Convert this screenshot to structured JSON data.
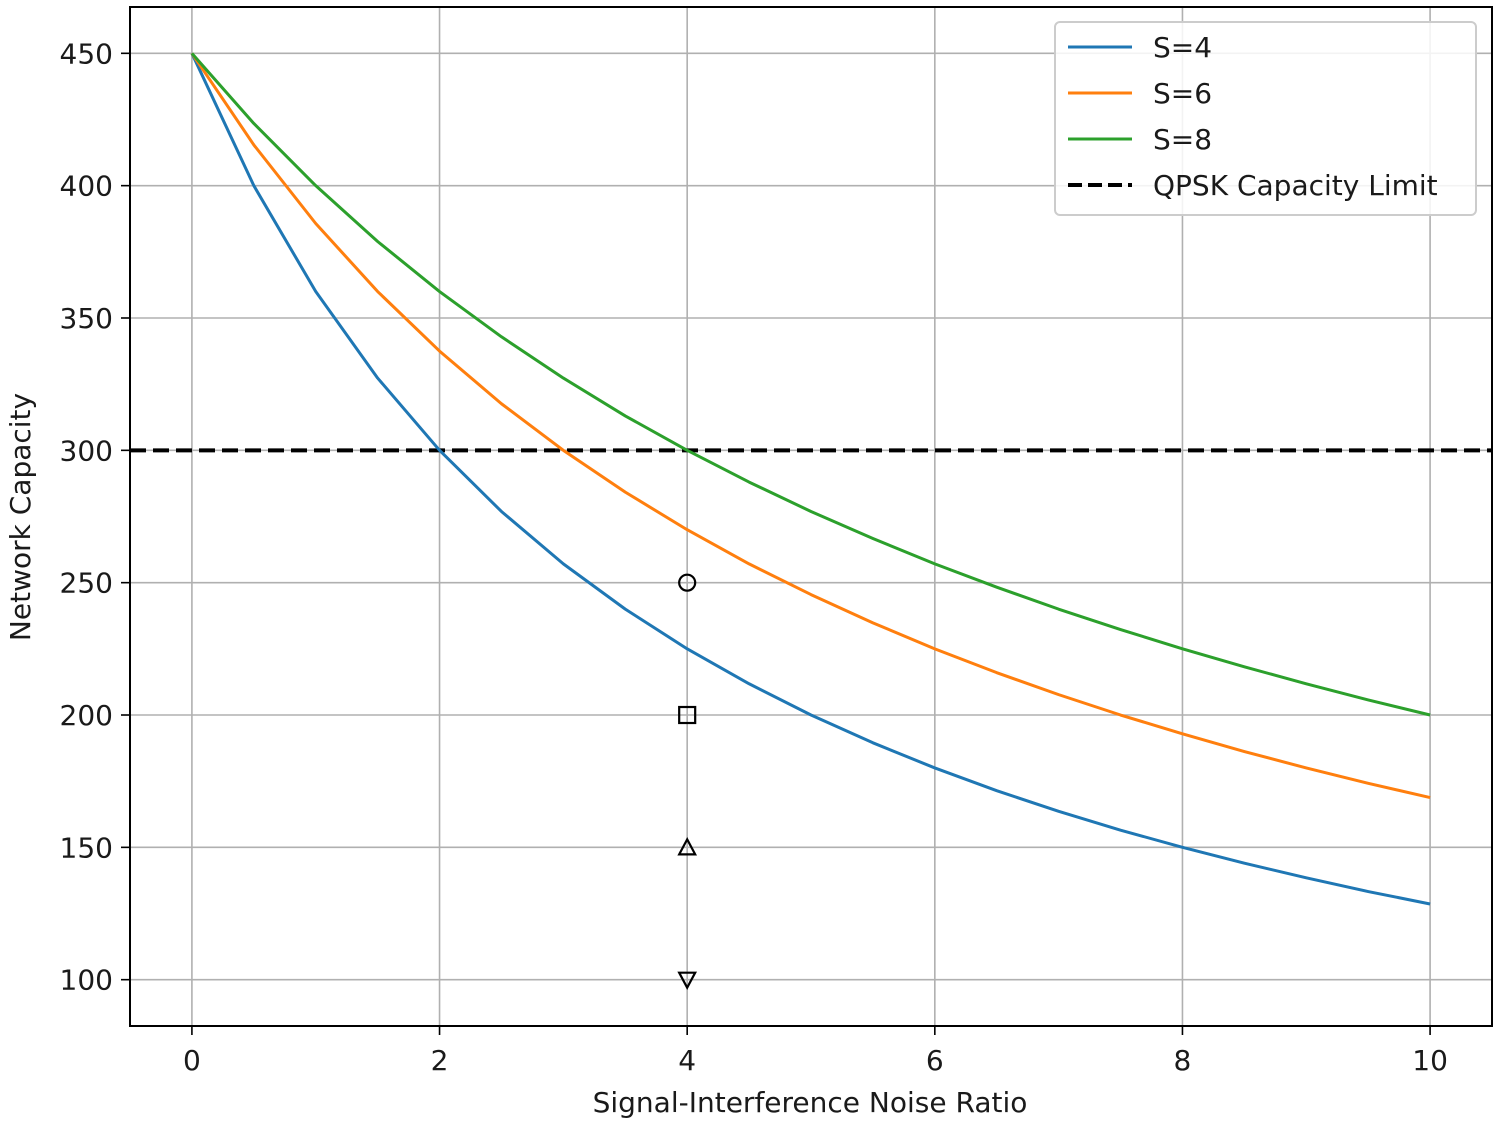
{
  "chart_data": {
    "type": "line",
    "title": "",
    "xlabel": "Signal-Interference Noise Ratio",
    "ylabel": "Network Capacity",
    "xlim": [
      -0.5,
      10.5
    ],
    "ylim": [
      82.5,
      467.5
    ],
    "xticks": [
      0,
      2,
      4,
      6,
      8,
      10
    ],
    "yticks": [
      100,
      150,
      200,
      250,
      300,
      350,
      400,
      450
    ],
    "xtick_labels": [
      "0",
      "2",
      "4",
      "6",
      "8",
      "10"
    ],
    "ytick_labels": [
      "100",
      "150",
      "200",
      "250",
      "300",
      "350",
      "400",
      "450"
    ],
    "grid": true,
    "legend_position": "top-right",
    "series": [
      {
        "name": "S=4",
        "color": "#1f77b4",
        "x": [
          0,
          0.5,
          1,
          1.5,
          2,
          2.5,
          3,
          3.5,
          4,
          4.5,
          5,
          5.5,
          6,
          6.5,
          7,
          7.5,
          8,
          8.5,
          9,
          9.5,
          10
        ],
        "y": [
          450,
          400,
          360,
          327.3,
          300,
          276.9,
          257.1,
          240,
          225,
          211.8,
          200,
          189.5,
          180,
          171.4,
          163.6,
          156.5,
          150,
          144,
          138.5,
          133.3,
          128.6
        ]
      },
      {
        "name": "S=6",
        "color": "#ff7f0e",
        "x": [
          0,
          0.5,
          1,
          1.5,
          2,
          2.5,
          3,
          3.5,
          4,
          4.5,
          5,
          5.5,
          6,
          6.5,
          7,
          7.5,
          8,
          8.5,
          9,
          9.5,
          10
        ],
        "y": [
          450,
          415.4,
          385.7,
          360,
          337.5,
          317.6,
          300,
          284.2,
          270,
          257.1,
          245.5,
          234.8,
          225,
          216,
          207.7,
          200,
          192.9,
          186.2,
          180,
          174.2,
          168.8
        ]
      },
      {
        "name": "S=8",
        "color": "#2ca02c",
        "x": [
          0,
          0.5,
          1,
          1.5,
          2,
          2.5,
          3,
          3.5,
          4,
          4.5,
          5,
          5.5,
          6,
          6.5,
          7,
          7.5,
          8,
          8.5,
          9,
          9.5,
          10
        ],
        "y": [
          450,
          423.5,
          400,
          378.9,
          360,
          342.9,
          327.3,
          313,
          300,
          288,
          276.9,
          266.7,
          257.1,
          248.3,
          240,
          232.3,
          225,
          218.2,
          211.8,
          205.7,
          200
        ]
      }
    ],
    "reference_line": {
      "name": "QPSK Capacity Limit",
      "y": 300,
      "color": "#000000",
      "style": "dashed"
    },
    "markers": [
      {
        "x": 4,
        "y": 250,
        "shape": "circle"
      },
      {
        "x": 4,
        "y": 200,
        "shape": "square"
      },
      {
        "x": 4,
        "y": 150,
        "shape": "triangle-up"
      },
      {
        "x": 4,
        "y": 100,
        "shape": "triangle-down"
      }
    ]
  }
}
